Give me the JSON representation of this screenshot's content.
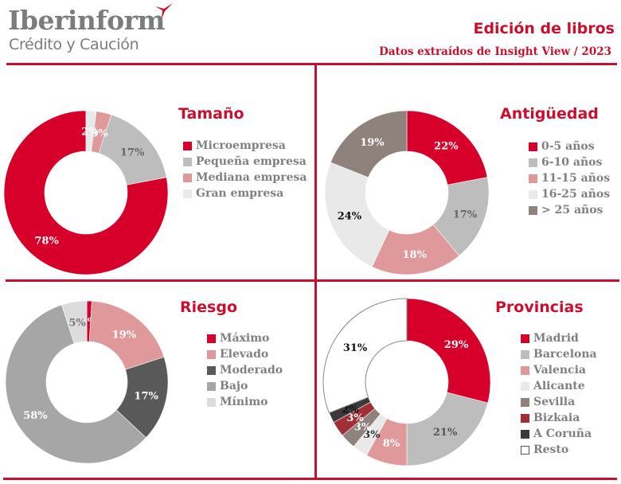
{
  "header": {
    "brand": "Iberinform",
    "brand_sub": "Crédito y Caución",
    "title": "Edición de libros",
    "subtitle": "Datos extraídos de Insight View / 2023"
  },
  "colors": {
    "accent": "#c8102e"
  },
  "chart_data": [
    {
      "type": "pie",
      "variant": "donut",
      "title": "Tamaño",
      "categories": [
        "Microempresa",
        "Pequeña empresa",
        "Mediana empresa",
        "Gran empresa"
      ],
      "values": [
        78,
        17,
        3,
        2
      ],
      "labels": [
        "78%",
        "17%",
        "3%",
        "2%"
      ],
      "colors": [
        "#d6002a",
        "#bdbdbd",
        "#e0999b",
        "#e9e9e9"
      ],
      "label_colors": [
        "#ffffff",
        "#666666",
        "#ffffff",
        "#ffffff"
      ],
      "order": "counterclockwise-from-top",
      "legend": "right"
    },
    {
      "type": "pie",
      "variant": "donut",
      "title": "Antigüedad",
      "categories": [
        "0-5 años",
        "6-10 años",
        "11-15 años",
        "16-25 años",
        "> 25 años"
      ],
      "values": [
        22,
        17,
        18,
        24,
        19
      ],
      "labels": [
        "22%",
        "17%",
        "18%",
        "24%",
        "19%"
      ],
      "colors": [
        "#d6002a",
        "#bdbdbd",
        "#e0999b",
        "#e9e9e9",
        "#8f817c"
      ],
      "label_colors": [
        "#ffffff",
        "#666666",
        "#ffffff",
        "#111111",
        "#ffffff"
      ],
      "order": "clockwise-from-top",
      "legend": "right"
    },
    {
      "type": "pie",
      "variant": "donut",
      "title": "Riesgo",
      "categories": [
        "Máximo",
        "Elevado",
        "Moderado",
        "Bajo",
        "Mínimo"
      ],
      "values": [
        1,
        19,
        17,
        58,
        5
      ],
      "labels": [
        "1%",
        "19%",
        "17%",
        "58%",
        "5%"
      ],
      "colors": [
        "#d6002a",
        "#e0999b",
        "#595959",
        "#a6a6a6",
        "#dcdcdc"
      ],
      "label_colors": [
        "#ffffff",
        "#ffffff",
        "#ffffff",
        "#ffffff",
        "#777777"
      ],
      "order": "clockwise-from-top",
      "legend": "right"
    },
    {
      "type": "pie",
      "variant": "donut",
      "title": "Provincias",
      "categories": [
        "Madrid",
        "Barcelona",
        "Valencia",
        "Alicante",
        "Sevilla",
        "Bizkaia",
        "A Coruña",
        "Resto"
      ],
      "values": [
        29,
        21,
        8,
        3,
        3,
        3,
        2,
        31
      ],
      "labels": [
        "29%",
        "21%",
        "8%",
        "3%",
        "3%",
        "3%",
        "2%",
        "31%"
      ],
      "colors": [
        "#d6002a",
        "#bdbdbd",
        "#e0999b",
        "#e9e9e9",
        "#8f817c",
        "#a03035",
        "#3a3a3a",
        "#ffffff"
      ],
      "label_colors": [
        "#ffffff",
        "#555555",
        "#ffffff",
        "#333333",
        "#ffffff",
        "#ffffff",
        "#111111",
        "#111111"
      ],
      "order": "clockwise-from-top",
      "legend": "right"
    }
  ]
}
